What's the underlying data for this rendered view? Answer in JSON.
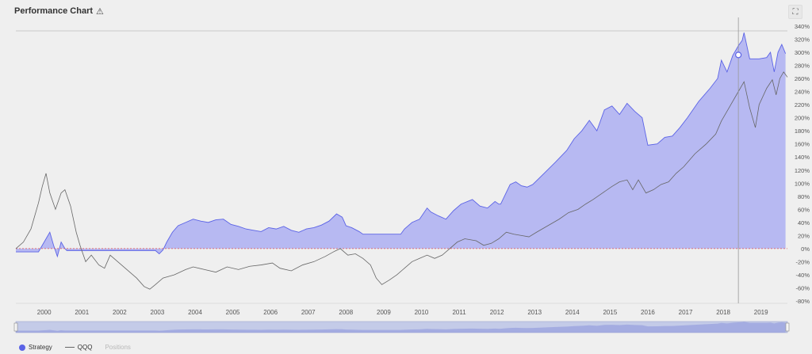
{
  "header": {
    "title": "Performance Chart",
    "warning_icon": "warning-triangle-icon",
    "expand_icon": "expand-icon"
  },
  "legend": {
    "strategy_label": "Strategy",
    "benchmark_label": "QQQ",
    "positions_label": "Positions"
  },
  "colors": {
    "strategy_fill": "#b7b9f2",
    "strategy_line": "#5b63e6",
    "benchmark_line": "#666666",
    "zero_line": "#e05555",
    "grid": "#d6d6d6"
  },
  "chart_data": {
    "type": "area",
    "xlabel": "",
    "ylabel": "",
    "xlim": [
      1999.3,
      2019.75
    ],
    "ylim": [
      -80,
      340
    ],
    "x_ticks": [
      "2000",
      "2001",
      "2002",
      "2003",
      "2004",
      "2005",
      "2006",
      "2007",
      "2008",
      "2009",
      "2010",
      "2011",
      "2012",
      "2013",
      "2014",
      "2015",
      "2016",
      "2017",
      "2018",
      "2019"
    ],
    "y_ticks": [
      "340%",
      "320%",
      "300%",
      "280%",
      "260%",
      "240%",
      "220%",
      "200%",
      "180%",
      "160%",
      "140%",
      "120%",
      "100%",
      "80%",
      "60%",
      "40%",
      "20%",
      "0%",
      "-20%",
      "-40%",
      "-60%",
      "-80%"
    ],
    "series": [
      {
        "name": "Strategy",
        "points": [
          [
            1999.3,
            -5
          ],
          [
            1999.9,
            -5
          ],
          [
            2000.0,
            5
          ],
          [
            2000.1,
            15
          ],
          [
            2000.2,
            25
          ],
          [
            2000.3,
            5
          ],
          [
            2000.4,
            -12
          ],
          [
            2000.5,
            10
          ],
          [
            2000.6,
            0
          ],
          [
            2000.65,
            -3
          ],
          [
            2000.7,
            -3
          ],
          [
            2003.0,
            -3
          ],
          [
            2003.1,
            -8
          ],
          [
            2003.2,
            -2
          ],
          [
            2003.3,
            10
          ],
          [
            2003.45,
            25
          ],
          [
            2003.6,
            35
          ],
          [
            2003.8,
            40
          ],
          [
            2004.0,
            45
          ],
          [
            2004.2,
            42
          ],
          [
            2004.4,
            40
          ],
          [
            2004.6,
            44
          ],
          [
            2004.8,
            45
          ],
          [
            2005.0,
            37
          ],
          [
            2005.2,
            34
          ],
          [
            2005.4,
            30
          ],
          [
            2005.6,
            28
          ],
          [
            2005.8,
            26
          ],
          [
            2006.0,
            32
          ],
          [
            2006.2,
            30
          ],
          [
            2006.4,
            34
          ],
          [
            2006.6,
            28
          ],
          [
            2006.8,
            25
          ],
          [
            2007.0,
            30
          ],
          [
            2007.2,
            32
          ],
          [
            2007.4,
            36
          ],
          [
            2007.6,
            42
          ],
          [
            2007.8,
            53
          ],
          [
            2007.95,
            48
          ],
          [
            2008.05,
            35
          ],
          [
            2008.2,
            32
          ],
          [
            2008.4,
            26
          ],
          [
            2008.5,
            22
          ],
          [
            2009.5,
            22
          ],
          [
            2009.6,
            30
          ],
          [
            2009.8,
            40
          ],
          [
            2010.0,
            45
          ],
          [
            2010.2,
            62
          ],
          [
            2010.3,
            56
          ],
          [
            2010.5,
            50
          ],
          [
            2010.7,
            45
          ],
          [
            2010.9,
            58
          ],
          [
            2011.1,
            68
          ],
          [
            2011.4,
            75
          ],
          [
            2011.6,
            65
          ],
          [
            2011.8,
            62
          ],
          [
            2012.0,
            72
          ],
          [
            2012.1,
            68
          ],
          [
            2012.15,
            68
          ],
          [
            2012.25,
            80
          ],
          [
            2012.4,
            98
          ],
          [
            2012.55,
            102
          ],
          [
            2012.7,
            96
          ],
          [
            2012.85,
            94
          ],
          [
            2013.0,
            98
          ],
          [
            2013.3,
            115
          ],
          [
            2013.6,
            132
          ],
          [
            2013.9,
            150
          ],
          [
            2014.1,
            168
          ],
          [
            2014.3,
            180
          ],
          [
            2014.5,
            196
          ],
          [
            2014.7,
            180
          ],
          [
            2014.9,
            212
          ],
          [
            2015.1,
            218
          ],
          [
            2015.3,
            205
          ],
          [
            2015.5,
            222
          ],
          [
            2015.7,
            210
          ],
          [
            2015.9,
            200
          ],
          [
            2016.05,
            158
          ],
          [
            2016.3,
            160
          ],
          [
            2016.5,
            170
          ],
          [
            2016.7,
            172
          ],
          [
            2016.9,
            185
          ],
          [
            2017.1,
            200
          ],
          [
            2017.4,
            225
          ],
          [
            2017.7,
            245
          ],
          [
            2017.9,
            260
          ],
          [
            2018.0,
            288
          ],
          [
            2018.15,
            270
          ],
          [
            2018.3,
            295
          ],
          [
            2018.45,
            310
          ],
          [
            2018.55,
            318
          ],
          [
            2018.6,
            330
          ],
          [
            2018.75,
            290
          ],
          [
            2019.0,
            290
          ],
          [
            2019.2,
            292
          ],
          [
            2019.3,
            300
          ],
          [
            2019.4,
            270
          ],
          [
            2019.5,
            300
          ],
          [
            2019.6,
            312
          ],
          [
            2019.7,
            298
          ]
        ]
      },
      {
        "name": "QQQ",
        "points": [
          [
            1999.3,
            0
          ],
          [
            1999.5,
            10
          ],
          [
            1999.7,
            30
          ],
          [
            1999.8,
            50
          ],
          [
            1999.9,
            70
          ],
          [
            2000.0,
            95
          ],
          [
            2000.1,
            115
          ],
          [
            2000.2,
            85
          ],
          [
            2000.35,
            60
          ],
          [
            2000.5,
            85
          ],
          [
            2000.6,
            90
          ],
          [
            2000.75,
            65
          ],
          [
            2000.9,
            25
          ],
          [
            2001.0,
            5
          ],
          [
            2001.15,
            -20
          ],
          [
            2001.3,
            -10
          ],
          [
            2001.5,
            -25
          ],
          [
            2001.65,
            -30
          ],
          [
            2001.8,
            -10
          ],
          [
            2002.0,
            -20
          ],
          [
            2002.3,
            -35
          ],
          [
            2002.5,
            -45
          ],
          [
            2002.7,
            -58
          ],
          [
            2002.85,
            -62
          ],
          [
            2003.0,
            -55
          ],
          [
            2003.2,
            -45
          ],
          [
            2003.5,
            -40
          ],
          [
            2003.8,
            -32
          ],
          [
            2004.0,
            -28
          ],
          [
            2004.3,
            -32
          ],
          [
            2004.6,
            -36
          ],
          [
            2004.9,
            -28
          ],
          [
            2005.2,
            -32
          ],
          [
            2005.5,
            -27
          ],
          [
            2005.8,
            -25
          ],
          [
            2006.1,
            -22
          ],
          [
            2006.3,
            -30
          ],
          [
            2006.6,
            -34
          ],
          [
            2006.9,
            -25
          ],
          [
            2007.2,
            -20
          ],
          [
            2007.5,
            -12
          ],
          [
            2007.75,
            -4
          ],
          [
            2007.9,
            0
          ],
          [
            2008.1,
            -10
          ],
          [
            2008.3,
            -8
          ],
          [
            2008.5,
            -15
          ],
          [
            2008.7,
            -25
          ],
          [
            2008.85,
            -45
          ],
          [
            2009.0,
            -55
          ],
          [
            2009.2,
            -48
          ],
          [
            2009.4,
            -40
          ],
          [
            2009.6,
            -30
          ],
          [
            2009.8,
            -20
          ],
          [
            2010.0,
            -15
          ],
          [
            2010.2,
            -10
          ],
          [
            2010.4,
            -15
          ],
          [
            2010.6,
            -10
          ],
          [
            2010.8,
            0
          ],
          [
            2011.0,
            10
          ],
          [
            2011.2,
            15
          ],
          [
            2011.5,
            12
          ],
          [
            2011.7,
            5
          ],
          [
            2011.9,
            8
          ],
          [
            2012.1,
            15
          ],
          [
            2012.3,
            25
          ],
          [
            2012.5,
            22
          ],
          [
            2012.7,
            20
          ],
          [
            2012.9,
            18
          ],
          [
            2013.1,
            25
          ],
          [
            2013.4,
            35
          ],
          [
            2013.7,
            45
          ],
          [
            2013.95,
            55
          ],
          [
            2014.2,
            60
          ],
          [
            2014.4,
            68
          ],
          [
            2014.6,
            75
          ],
          [
            2014.85,
            85
          ],
          [
            2015.1,
            95
          ],
          [
            2015.3,
            102
          ],
          [
            2015.5,
            105
          ],
          [
            2015.65,
            90
          ],
          [
            2015.8,
            105
          ],
          [
            2016.0,
            85
          ],
          [
            2016.2,
            90
          ],
          [
            2016.4,
            98
          ],
          [
            2016.6,
            102
          ],
          [
            2016.8,
            115
          ],
          [
            2017.0,
            125
          ],
          [
            2017.3,
            145
          ],
          [
            2017.6,
            160
          ],
          [
            2017.85,
            175
          ],
          [
            2018.0,
            195
          ],
          [
            2018.2,
            215
          ],
          [
            2018.45,
            240
          ],
          [
            2018.6,
            255
          ],
          [
            2018.75,
            215
          ],
          [
            2018.9,
            185
          ],
          [
            2019.0,
            220
          ],
          [
            2019.2,
            245
          ],
          [
            2019.35,
            258
          ],
          [
            2019.45,
            235
          ],
          [
            2019.55,
            260
          ],
          [
            2019.65,
            270
          ],
          [
            2019.75,
            262
          ]
        ]
      }
    ],
    "grid": true,
    "crosshair_x": 2018.45,
    "legend_position": "bottom-left"
  }
}
